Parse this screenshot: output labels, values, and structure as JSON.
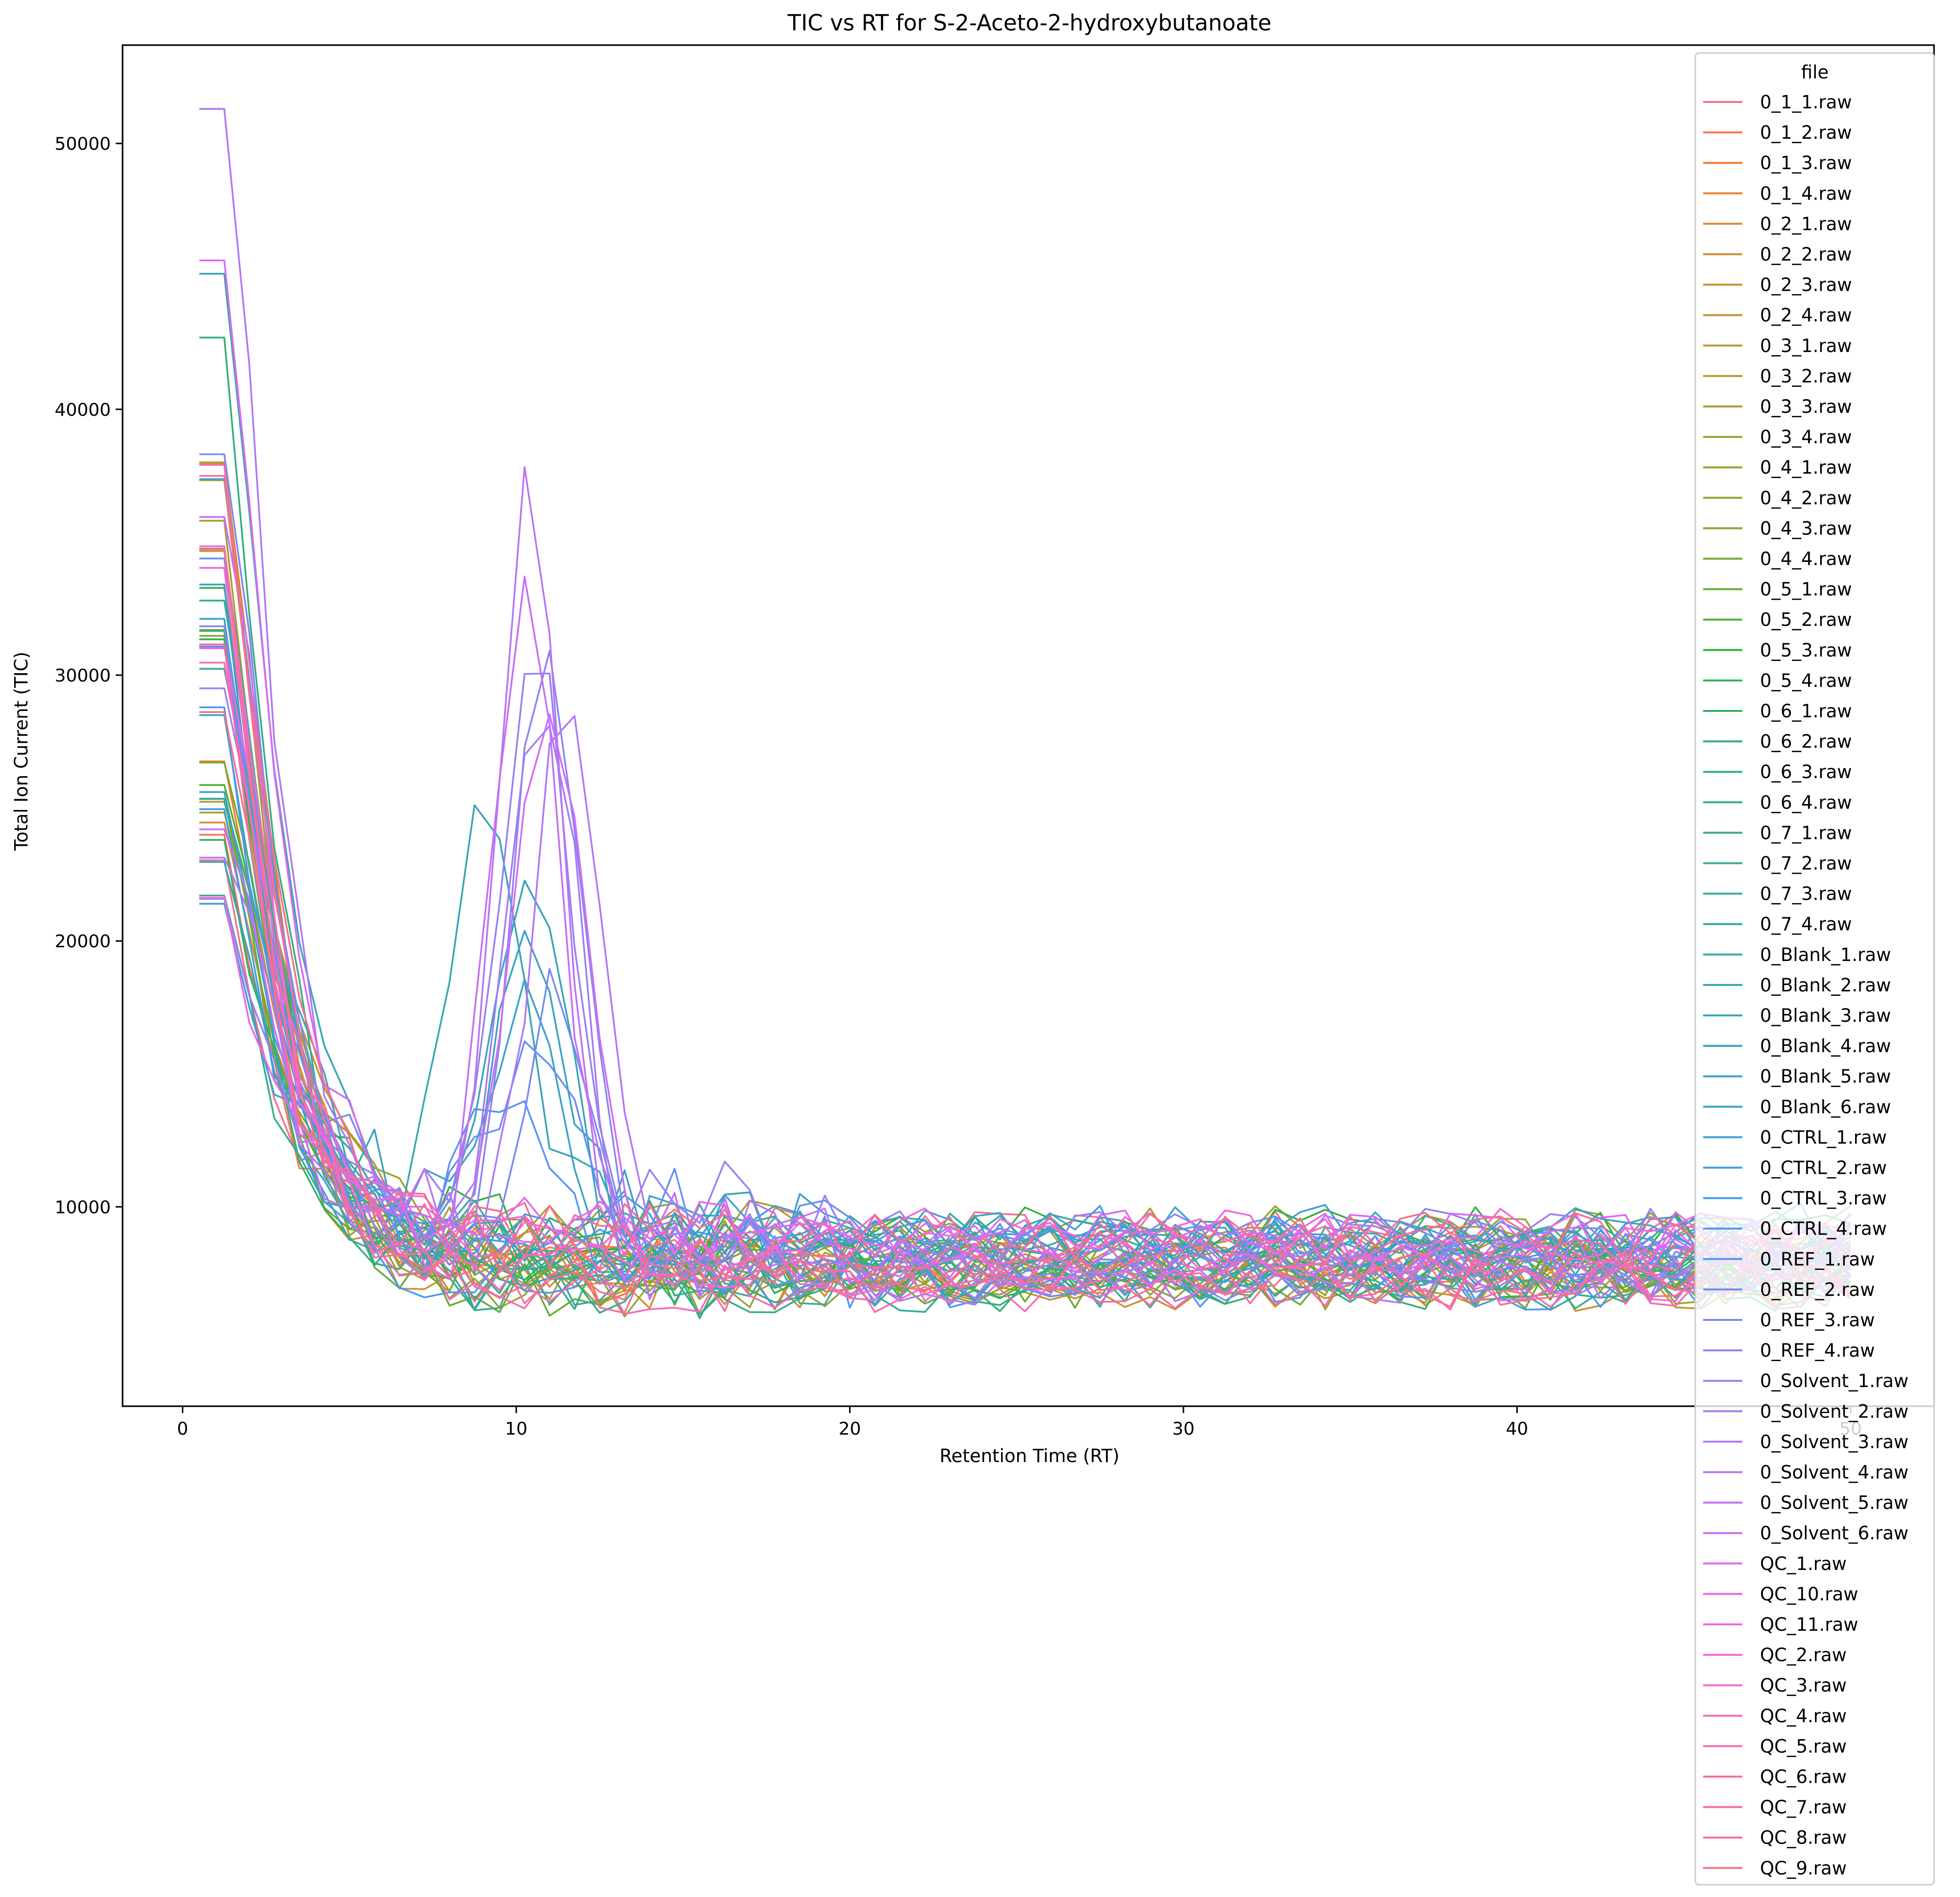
{
  "chart_data": {
    "type": "line",
    "title": "TIC vs RT for S-2-Aceto-2-hydroxybutanoate",
    "xlabel": "Retention Time (RT)",
    "ylabel": "Total Ion Current (TIC)",
    "xlim": [
      -1.8,
      52.5
    ],
    "ylim": [
      2500,
      53700
    ],
    "x_ticks": [
      0,
      10,
      20,
      30,
      40,
      50
    ],
    "y_ticks": [
      10000,
      20000,
      30000,
      40000,
      50000
    ],
    "grid": false,
    "legend": {
      "title": "file",
      "placement": "right",
      "entries": [
        {
          "name": "0_1_1.raw",
          "color": "#f77189"
        },
        {
          "name": "0_1_2.raw",
          "color": "#f7754f"
        },
        {
          "name": "0_1_3.raw",
          "color": "#f37932"
        },
        {
          "name": "0_1_4.raw",
          "color": "#e8802f"
        },
        {
          "name": "0_2_1.raw",
          "color": "#dc8932"
        },
        {
          "name": "0_2_2.raw",
          "color": "#d28d32"
        },
        {
          "name": "0_2_3.raw",
          "color": "#c89232"
        },
        {
          "name": "0_2_4.raw",
          "color": "#c09532"
        },
        {
          "name": "0_3_1.raw",
          "color": "#b89832"
        },
        {
          "name": "0_3_2.raw",
          "color": "#b19b31"
        },
        {
          "name": "0_3_3.raw",
          "color": "#a99e31"
        },
        {
          "name": "0_3_4.raw",
          "color": "#a1a031"
        },
        {
          "name": "0_4_1.raw",
          "color": "#98a331"
        },
        {
          "name": "0_4_2.raw",
          "color": "#8fa531"
        },
        {
          "name": "0_4_3.raw",
          "color": "#84a831"
        },
        {
          "name": "0_4_4.raw",
          "color": "#77aa31"
        },
        {
          "name": "0_5_1.raw",
          "color": "#66ad31"
        },
        {
          "name": "0_5_2.raw",
          "color": "#50b131"
        },
        {
          "name": "0_5_3.raw",
          "color": "#33b13e"
        },
        {
          "name": "0_5_4.raw",
          "color": "#33b15a"
        },
        {
          "name": "0_6_1.raw",
          "color": "#34b06b"
        },
        {
          "name": "0_6_2.raw",
          "color": "#35af77"
        },
        {
          "name": "0_6_3.raw",
          "color": "#35ae81"
        },
        {
          "name": "0_6_4.raw",
          "color": "#36ad89"
        },
        {
          "name": "0_7_1.raw",
          "color": "#36ac90"
        },
        {
          "name": "0_7_2.raw",
          "color": "#36ab96"
        },
        {
          "name": "0_7_3.raw",
          "color": "#37aa9c"
        },
        {
          "name": "0_7_4.raw",
          "color": "#37a9a2"
        },
        {
          "name": "0_Blank_1.raw",
          "color": "#38a8a7"
        },
        {
          "name": "0_Blank_2.raw",
          "color": "#38a7ad"
        },
        {
          "name": "0_Blank_3.raw",
          "color": "#39a6b3"
        },
        {
          "name": "0_Blank_4.raw",
          "color": "#39a5b9"
        },
        {
          "name": "0_Blank_5.raw",
          "color": "#3aa4c0"
        },
        {
          "name": "0_Blank_6.raw",
          "color": "#3ba2c8"
        },
        {
          "name": "0_CTRL_1.raw",
          "color": "#3ca0d2"
        },
        {
          "name": "0_CTRL_2.raw",
          "color": "#3d9edf"
        },
        {
          "name": "0_CTRL_3.raw",
          "color": "#3e9cec"
        },
        {
          "name": "0_CTRL_4.raw",
          "color": "#4a98f2"
        },
        {
          "name": "0_REF_1.raw",
          "color": "#5a93f3"
        },
        {
          "name": "0_REF_2.raw",
          "color": "#6a8ef4"
        },
        {
          "name": "0_REF_3.raw",
          "color": "#7a89f4"
        },
        {
          "name": "0_REF_4.raw",
          "color": "#8985f4"
        },
        {
          "name": "0_Solvent_1.raw",
          "color": "#9681f4"
        },
        {
          "name": "0_Solvent_2.raw",
          "color": "#a37df4"
        },
        {
          "name": "0_Solvent_3.raw",
          "color": "#ae79f4"
        },
        {
          "name": "0_Solvent_4.raw",
          "color": "#b975f4"
        },
        {
          "name": "0_Solvent_5.raw",
          "color": "#c470f4"
        },
        {
          "name": "0_Solvent_6.raw",
          "color": "#d06cf4"
        },
        {
          "name": "QC_1.raw",
          "color": "#dd68f4"
        },
        {
          "name": "QC_10.raw",
          "color": "#e866f0"
        },
        {
          "name": "QC_11.raw",
          "color": "#f066e6"
        },
        {
          "name": "QC_2.raw",
          "color": "#f468d8"
        },
        {
          "name": "QC_3.raw",
          "color": "#f56ac9"
        },
        {
          "name": "QC_4.raw",
          "color": "#f56bbb"
        },
        {
          "name": "QC_5.raw",
          "color": "#f56cae"
        },
        {
          "name": "QC_6.raw",
          "color": "#f66da2"
        },
        {
          "name": "QC_7.raw",
          "color": "#f66e97"
        },
        {
          "name": "QC_8.raw",
          "color": "#f66f8d"
        },
        {
          "name": "QC_9.raw",
          "color": "#f77189"
        }
      ]
    },
    "series_profile": {
      "rt_start": 0.5,
      "rt_end": 50.0,
      "rt_step": 0.75,
      "initial_tic_range": [
        21300,
        51300
      ],
      "baseline_tic_range": [
        4200,
        12000
      ],
      "peak_rt_range": [
        8.5,
        12.0
      ],
      "peak_tic_max": 35800
    }
  }
}
